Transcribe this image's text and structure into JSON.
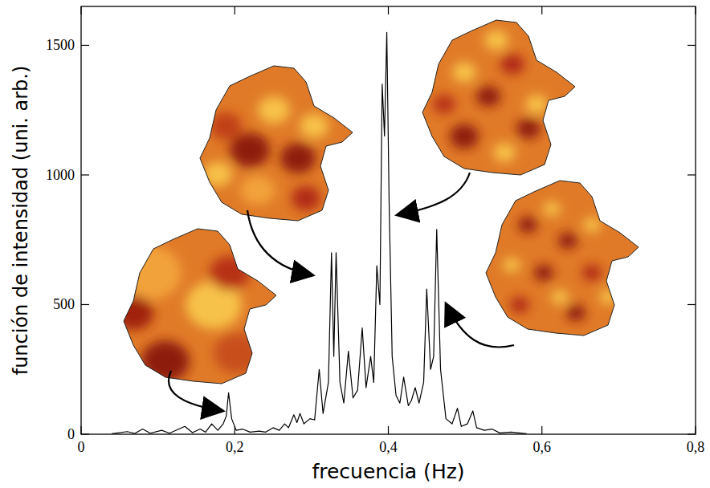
{
  "chart_data": {
    "type": "line",
    "x_label": "frecuencia (Hz)",
    "y_label": "función de intensidad (uni. arb.)",
    "x": [
      0.04,
      0.06,
      0.07,
      0.08,
      0.09,
      0.105,
      0.115,
      0.135,
      0.145,
      0.155,
      0.162,
      0.17,
      0.178,
      0.185,
      0.189,
      0.192,
      0.196,
      0.202,
      0.21,
      0.22,
      0.232,
      0.24,
      0.25,
      0.258,
      0.265,
      0.27,
      0.277,
      0.281,
      0.285,
      0.29,
      0.298,
      0.304,
      0.31,
      0.315,
      0.322,
      0.326,
      0.329,
      0.332,
      0.337,
      0.342,
      0.348,
      0.354,
      0.36,
      0.366,
      0.371,
      0.377,
      0.381,
      0.385,
      0.389,
      0.392,
      0.395,
      0.398,
      0.401,
      0.405,
      0.41,
      0.415,
      0.42,
      0.426,
      0.43,
      0.435,
      0.44,
      0.446,
      0.45,
      0.455,
      0.459,
      0.463,
      0.468,
      0.475,
      0.483,
      0.49,
      0.495,
      0.503,
      0.51,
      0.515,
      0.525,
      0.535,
      0.545,
      0.56,
      0.58
    ],
    "values": [
      2,
      10,
      3,
      20,
      4,
      15,
      4,
      30,
      6,
      20,
      8,
      40,
      15,
      40,
      70,
      160,
      60,
      15,
      20,
      8,
      12,
      8,
      25,
      15,
      40,
      25,
      75,
      45,
      80,
      40,
      60,
      55,
      250,
      80,
      200,
      700,
      300,
      700,
      200,
      120,
      320,
      140,
      170,
      410,
      180,
      300,
      200,
      650,
      500,
      1350,
      1150,
      1550,
      900,
      300,
      150,
      120,
      220,
      110,
      130,
      180,
      120,
      200,
      560,
      250,
      300,
      790,
      250,
      60,
      40,
      100,
      30,
      40,
      90,
      25,
      15,
      20,
      5,
      8,
      2
    ],
    "color": "#000000",
    "xlim": [
      0,
      0.8
    ],
    "xticks": [
      {
        "value": 0,
        "label": "0"
      },
      {
        "value": 0.2,
        "label": "0,2"
      },
      {
        "value": 0.4,
        "label": "0,4"
      },
      {
        "value": 0.6,
        "label": "0,6"
      },
      {
        "value": 0.8,
        "label": "0,8"
      }
    ],
    "ylim": [
      0,
      1650
    ],
    "yticks": [
      0,
      500,
      1000,
      1500
    ],
    "grid": false
  }
}
